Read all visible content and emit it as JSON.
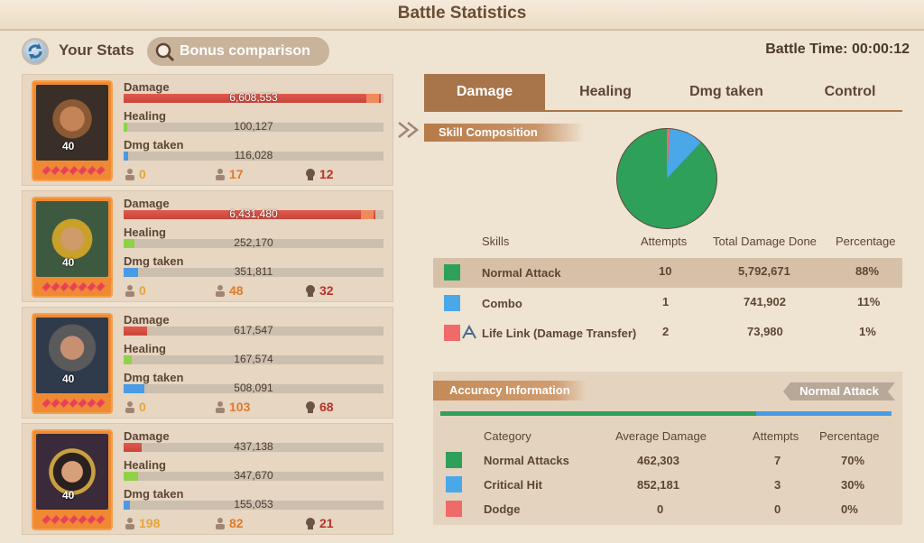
{
  "window": {
    "title": "Battle Statistics"
  },
  "topbar": {
    "your_stats": "Your Stats",
    "bonus_comparison": "Bonus comparison",
    "battle_time": "Battle Time: 00:00:12"
  },
  "labels": {
    "damage": "Damage",
    "healing": "Healing",
    "dmg_taken": "Dmg taken"
  },
  "heroes": [
    {
      "level": "40",
      "damage": "6,608,553",
      "damage_frac": 0.99,
      "healing": "100,127",
      "healing_frac": 0.015,
      "taken": "116,028",
      "taken_frac": 0.018,
      "c1": "0",
      "c2": "17",
      "c3": "12"
    },
    {
      "level": "40",
      "damage": "6,431,480",
      "damage_frac": 0.97,
      "healing": "252,170",
      "healing_frac": 0.04,
      "taken": "351,811",
      "taken_frac": 0.055,
      "c1": "0",
      "c2": "48",
      "c3": "32"
    },
    {
      "level": "40",
      "damage": "617,547",
      "damage_frac": 0.09,
      "healing": "167,574",
      "healing_frac": 0.03,
      "taken": "508,091",
      "taken_frac": 0.08,
      "c1": "0",
      "c2": "103",
      "c3": "68"
    },
    {
      "level": "40",
      "damage": "437,138",
      "damage_frac": 0.07,
      "healing": "347,670",
      "healing_frac": 0.055,
      "taken": "155,053",
      "taken_frac": 0.025,
      "c1": "198",
      "c2": "82",
      "c3": "21"
    }
  ],
  "tabs": [
    "Damage",
    "Healing",
    "Dmg taken",
    "Control"
  ],
  "skill_composition": {
    "header": "Skill Composition",
    "columns": [
      "Skills",
      "Attempts",
      "Total Damage Done",
      "Percentage"
    ],
    "rows": [
      {
        "name": "Normal Attack",
        "attempts": "10",
        "total": "5,792,671",
        "pct": "88%",
        "color": "#2ea05a"
      },
      {
        "name": "Combo",
        "attempts": "1",
        "total": "741,902",
        "pct": "11%",
        "color": "#4aa8e8"
      },
      {
        "name": "Life Link (Damage Transfer)",
        "attempts": "2",
        "total": "73,980",
        "pct": "1%",
        "color": "#f06a6a"
      }
    ]
  },
  "chart_data": {
    "type": "pie",
    "categories": [
      "Normal Attack",
      "Combo",
      "Life Link (Damage Transfer)"
    ],
    "values": [
      88,
      11,
      1
    ],
    "colors": [
      "#2ea05a",
      "#4aa8e8",
      "#f06a6a"
    ]
  },
  "accuracy": {
    "header": "Accuracy Information",
    "badge": "Normal Attack",
    "hit_fraction": 0.7,
    "columns": [
      "Category",
      "Average Damage",
      "Attempts",
      "Percentage"
    ],
    "rows": [
      {
        "name": "Normal Attacks",
        "avg": "462,303",
        "attempts": "7",
        "pct": "70%",
        "color": "#2ea05a"
      },
      {
        "name": "Critical Hit",
        "avg": "852,181",
        "attempts": "3",
        "pct": "30%",
        "color": "#4aa8e8"
      },
      {
        "name": "Dodge",
        "avg": "0",
        "attempts": "0",
        "pct": "0%",
        "color": "#f06a6a"
      }
    ]
  }
}
